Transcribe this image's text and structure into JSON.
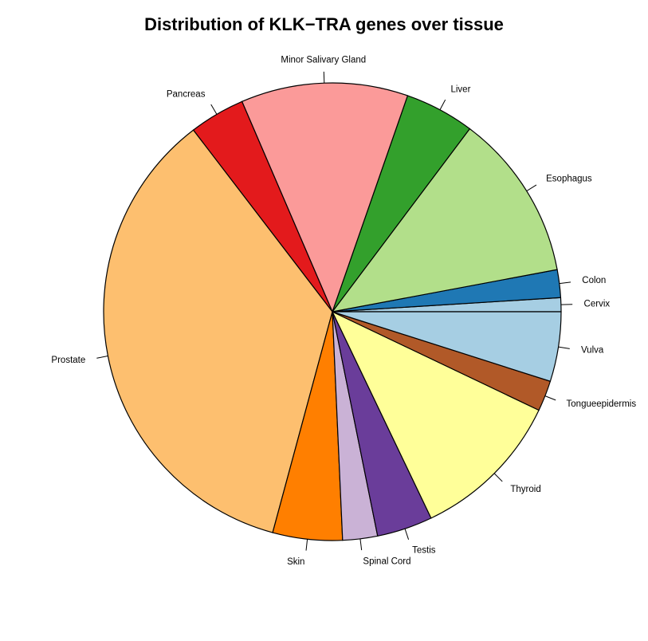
{
  "chart_data": {
    "type": "pie",
    "title": "Distribution of KLK−TRA genes over tissue",
    "start_angle_deg": 0,
    "direction": "counterclockwise",
    "slices": [
      {
        "label": "Cervix",
        "value": 1.0,
        "color": "#A6CEE3"
      },
      {
        "label": "Colon",
        "value": 2.0,
        "color": "#1F78B4"
      },
      {
        "label": "Esophagus",
        "value": 12.0,
        "color": "#B2DF8A"
      },
      {
        "label": "Liver",
        "value": 5.0,
        "color": "#33A02C"
      },
      {
        "label": "Minor Salivary Gland",
        "value": 12.0,
        "color": "#FB9A99"
      },
      {
        "label": "Pancreas",
        "value": 4.0,
        "color": "#E31A1C"
      },
      {
        "label": "Prostate",
        "value": 36.0,
        "color": "#FDBF6F"
      },
      {
        "label": "Skin",
        "value": 5.0,
        "color": "#FF7F00"
      },
      {
        "label": "Spinal Cord",
        "value": 2.5,
        "color": "#CAB2D6"
      },
      {
        "label": "Testis",
        "value": 4.0,
        "color": "#6A3D9A"
      },
      {
        "label": "Thyroid",
        "value": 11.0,
        "color": "#FFFF99"
      },
      {
        "label": "Tongueepidermis",
        "value": 2.2,
        "color": "#B15928"
      },
      {
        "label": "Vulva",
        "value": 5.0,
        "color": "#A6CEE3"
      }
    ]
  }
}
